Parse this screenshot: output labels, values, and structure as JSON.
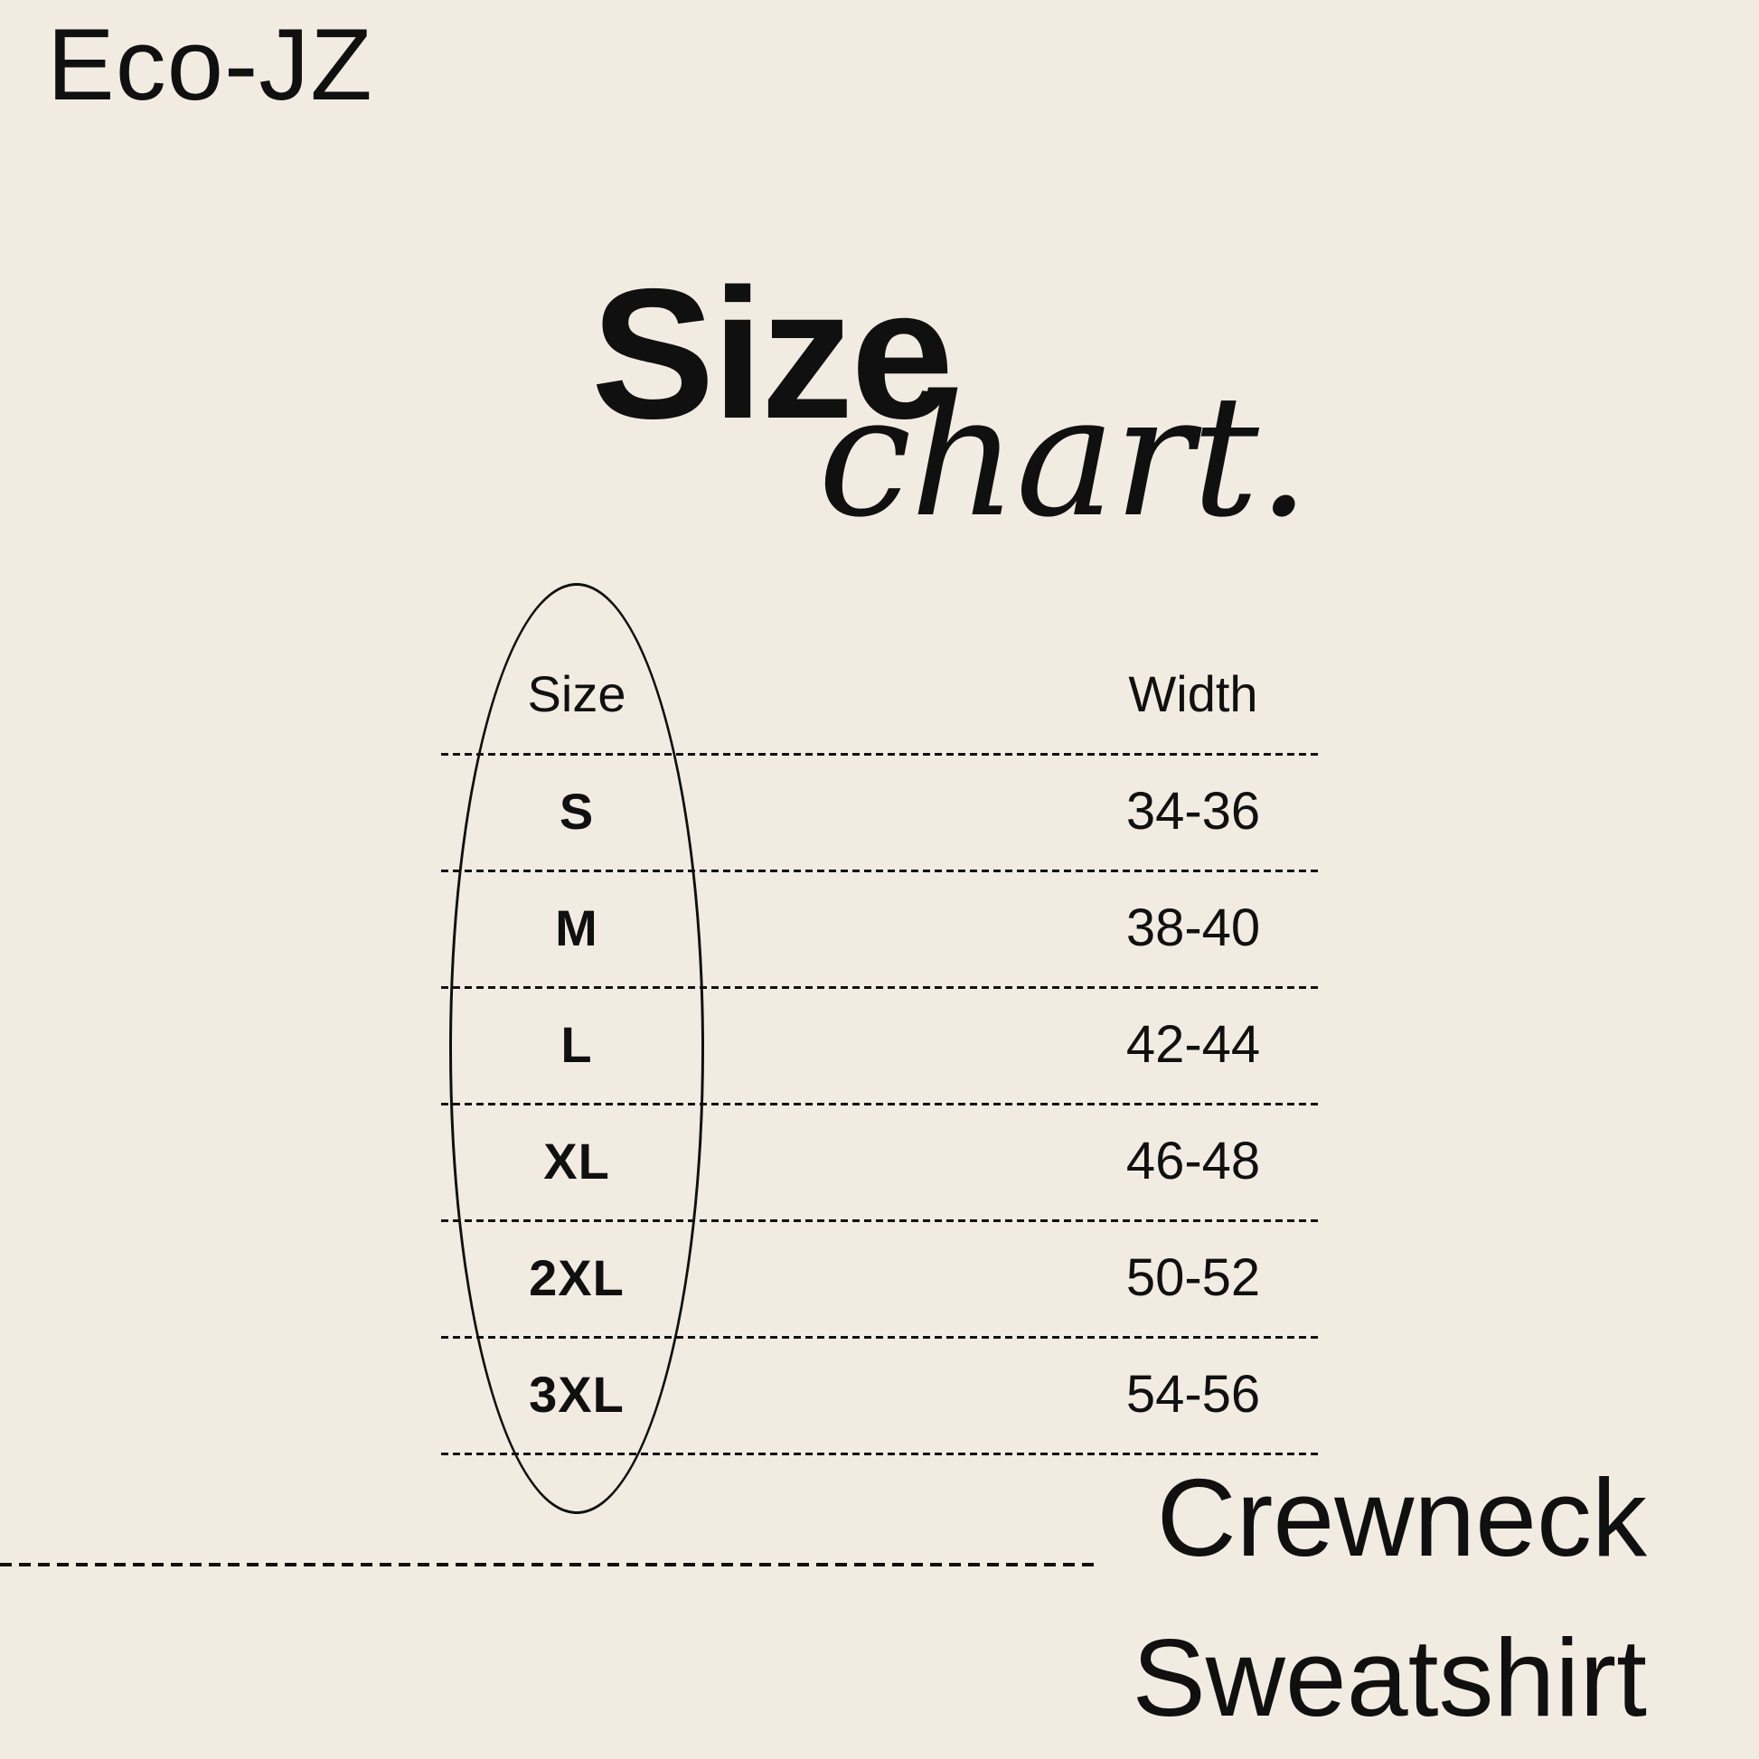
{
  "brand": "Eco-JZ",
  "title": {
    "main": "Size",
    "script": "chart."
  },
  "table": {
    "headers": [
      "Size",
      "Width"
    ],
    "rows": [
      {
        "size": "S",
        "width": "34-36"
      },
      {
        "size": "M",
        "width": "38-40"
      },
      {
        "size": "L",
        "width": "42-44"
      },
      {
        "size": "XL",
        "width": "46-48"
      },
      {
        "size": "2XL",
        "width": "50-52"
      },
      {
        "size": "3XL",
        "width": "54-56"
      }
    ]
  },
  "product": {
    "line1": "Crewneck",
    "line2": "Sweatshirt"
  },
  "colors": {
    "background": "#f2ebe2",
    "text": "#101010"
  },
  "chart_data": {
    "type": "table",
    "title": "Size chart.",
    "columns": [
      "Size",
      "Width"
    ],
    "rows": [
      [
        "S",
        "34-36"
      ],
      [
        "M",
        "38-40"
      ],
      [
        "L",
        "42-44"
      ],
      [
        "XL",
        "46-48"
      ],
      [
        "2XL",
        "50-52"
      ],
      [
        "3XL",
        "54-56"
      ]
    ]
  }
}
